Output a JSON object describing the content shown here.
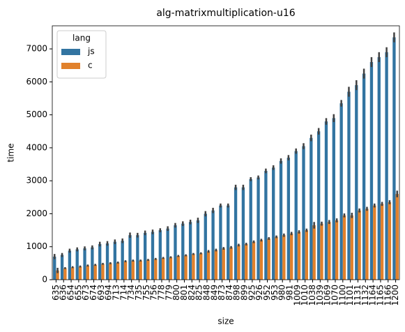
{
  "chart_data": {
    "type": "bar",
    "title": "alg-matrixmultiplication-u16",
    "x_label": "size",
    "y_label": "time",
    "categories": [
      "635",
      "636",
      "654",
      "655",
      "673",
      "674",
      "693",
      "694",
      "713",
      "714",
      "734",
      "735",
      "755",
      "756",
      "778",
      "779",
      "800",
      "801",
      "824",
      "825",
      "848",
      "849",
      "873",
      "874",
      "898",
      "899",
      "925",
      "926",
      "952",
      "953",
      "980",
      "981",
      "1009",
      "1010",
      "1038",
      "1039",
      "1069",
      "1070",
      "1100",
      "1101",
      "1131",
      "1132",
      "1164",
      "1165",
      "1166",
      "1200"
    ],
    "series": [
      {
        "name": "js",
        "color": "#3274a1",
        "values": [
          700,
          750,
          880,
          920,
          950,
          980,
          1080,
          1100,
          1150,
          1180,
          1350,
          1350,
          1420,
          1450,
          1500,
          1550,
          1650,
          1700,
          1750,
          1800,
          2000,
          2100,
          2250,
          2250,
          2800,
          2800,
          3050,
          3100,
          3300,
          3400,
          3600,
          3700,
          3900,
          4050,
          4300,
          4500,
          4800,
          4900,
          5350,
          5700,
          5900,
          6250,
          6600,
          6750,
          6900,
          7350
        ],
        "errors": [
          80,
          60,
          60,
          60,
          60,
          60,
          70,
          70,
          70,
          70,
          80,
          70,
          70,
          70,
          60,
          70,
          70,
          70,
          70,
          80,
          80,
          80,
          60,
          60,
          80,
          80,
          60,
          60,
          70,
          70,
          80,
          80,
          80,
          90,
          100,
          100,
          100,
          120,
          100,
          150,
          150,
          150,
          150,
          150,
          150,
          150
        ]
      },
      {
        "name": "c",
        "color": "#e1812c",
        "values": [
          280,
          350,
          380,
          400,
          430,
          450,
          480,
          500,
          520,
          560,
          580,
          580,
          600,
          630,
          660,
          680,
          720,
          740,
          780,
          800,
          860,
          900,
          950,
          980,
          1050,
          1080,
          1150,
          1200,
          1250,
          1300,
          1350,
          1400,
          1450,
          1500,
          1650,
          1700,
          1750,
          1800,
          1950,
          1950,
          2100,
          2150,
          2250,
          2300,
          2350,
          2600
        ],
        "errors": [
          80,
          30,
          30,
          30,
          30,
          30,
          30,
          30,
          30,
          30,
          30,
          30,
          30,
          30,
          30,
          30,
          30,
          30,
          30,
          30,
          40,
          40,
          40,
          40,
          40,
          40,
          40,
          40,
          40,
          40,
          50,
          50,
          50,
          50,
          100,
          60,
          60,
          60,
          60,
          80,
          60,
          60,
          60,
          60,
          60,
          100
        ]
      }
    ],
    "legend_title": "lang",
    "legend_position": "upper left",
    "ylim": [
      0,
      7700
    ],
    "yticks": [
      0,
      1000,
      2000,
      3000,
      4000,
      5000,
      6000,
      7000
    ],
    "grid": false
  }
}
